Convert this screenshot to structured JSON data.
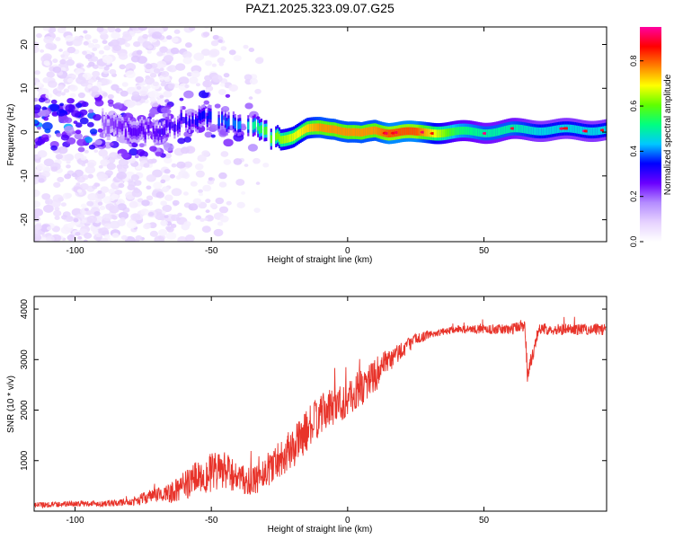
{
  "chart_data": [
    {
      "type": "heatmap",
      "title": "PAZ1.2025.323.09.07.G25",
      "xlabel": "Height of straight line (km)",
      "ylabel": "Frequency (Hz)",
      "xlim": [
        -115,
        95
      ],
      "ylim": [
        -25,
        24
      ],
      "xticks": [
        -100,
        -50,
        0,
        50
      ],
      "yticks": [
        -20,
        -10,
        0,
        10,
        20
      ],
      "xtick_labels": [
        "-100",
        "-50",
        "0",
        "50"
      ],
      "ytick_labels": [
        "-20",
        "-10",
        "0",
        "10",
        "20"
      ],
      "colorbar": {
        "label": "Normalized spectral amplitude",
        "range": [
          0,
          0.95
        ],
        "ticks": [
          0,
          0.2,
          0.4,
          0.6,
          0.8
        ],
        "tick_labels": [
          "0.0",
          "0.2",
          "0.4",
          "0.6",
          "0.8"
        ],
        "colors": [
          "#ffffff",
          "#e6d2ff",
          "#b48cff",
          "#6a00ff",
          "#0000ff",
          "#00c8ff",
          "#00ff80",
          "#60ff00",
          "#ffff00",
          "#ff8000",
          "#ff0000",
          "#ff00a0"
        ]
      },
      "ridge_frequency": {
        "x": [
          -90,
          -80,
          -70,
          -60,
          -50,
          -40,
          -35,
          -30,
          -25,
          -20,
          -15,
          -10,
          -5,
          0,
          5,
          10,
          15,
          20,
          25,
          30,
          40,
          50,
          60,
          70,
          80,
          95
        ],
        "y": [
          2,
          0,
          0,
          3,
          3,
          2,
          1.5,
          -0.5,
          -1.5,
          -1,
          0.5,
          1,
          1,
          0,
          -0.5,
          0.5,
          0,
          0,
          -0.2,
          0,
          0,
          0,
          0.5,
          0.5,
          0.5,
          0.5
        ],
        "amplitude": [
          0.22,
          0.3,
          0.3,
          0.35,
          0.4,
          0.45,
          0.55,
          0.65,
          0.7,
          0.75,
          0.8,
          0.85,
          0.85,
          0.85,
          0.85,
          0.85,
          0.9,
          0.9,
          0.9,
          0.8,
          0.6,
          0.55,
          0.55,
          0.5,
          0.5,
          0.5
        ]
      }
    },
    {
      "type": "line",
      "xlabel": "Height of straight line (km)",
      "ylabel": "SNR (10 * v/v)",
      "xlim": [
        -115,
        95
      ],
      "ylim": [
        0,
        4250
      ],
      "xticks": [
        -100,
        -50,
        0,
        50
      ],
      "yticks": [
        1000,
        2000,
        3000,
        4000
      ],
      "xtick_labels": [
        "-100",
        "-50",
        "0",
        "50"
      ],
      "ytick_labels": [
        "1000",
        "2000",
        "3000",
        "4000"
      ],
      "color": "#e8332a",
      "series": [
        {
          "name": "SNR",
          "x": [
            -115,
            -100,
            -90,
            -80,
            -75,
            -70,
            -65,
            -60,
            -55,
            -50,
            -45,
            -40,
            -35,
            -30,
            -25,
            -20,
            -15,
            -10,
            -5,
            0,
            5,
            10,
            15,
            20,
            25,
            30,
            35,
            40,
            50,
            60,
            65,
            66,
            70,
            80,
            95
          ],
          "y": [
            120,
            150,
            150,
            180,
            250,
            330,
            350,
            500,
            700,
            750,
            800,
            650,
            550,
            800,
            1050,
            1250,
            1600,
            1900,
            2100,
            2200,
            2450,
            2700,
            2950,
            3200,
            3400,
            3500,
            3550,
            3600,
            3600,
            3600,
            3700,
            2700,
            3600,
            3600,
            3600
          ],
          "noise": [
            60,
            60,
            60,
            70,
            120,
            150,
            200,
            280,
            350,
            400,
            380,
            300,
            280,
            350,
            380,
            400,
            420,
            400,
            380,
            380,
            380,
            350,
            250,
            180,
            120,
            80,
            70,
            70,
            90,
            110,
            150,
            200,
            110,
            110,
            120
          ]
        }
      ]
    }
  ]
}
